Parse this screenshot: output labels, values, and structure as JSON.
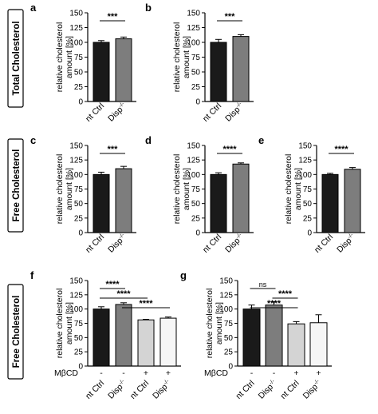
{
  "row_labels": [
    "Total Cholesterol",
    "Free Cholesterol",
    "Free Cholesterol"
  ],
  "sup_minus": "-/-",
  "ylabel_lines": [
    "relative cholesterol",
    "amount [%]"
  ],
  "treatment_label": "MβCD",
  "colors": {
    "black": "#1a1a1a",
    "dark_gray": "#7d7d7d",
    "light_gray": "#d4d4d4",
    "white": "#f6f6f6",
    "stroke": "#000000"
  },
  "chart_data": [
    {
      "panel": "a",
      "type": "bar",
      "categories": [
        "nt Ctrl",
        "Disp"
      ],
      "superscript": [
        false,
        true
      ],
      "values": [
        100,
        106
      ],
      "errors": [
        3,
        3
      ],
      "colors": [
        "black",
        "dark_gray"
      ],
      "ylim": [
        0,
        150
      ],
      "yticks": [
        0,
        25,
        50,
        75,
        100,
        125,
        150
      ],
      "significance": [
        {
          "from": 0,
          "to": 1,
          "label": "***"
        }
      ]
    },
    {
      "panel": "b",
      "type": "bar",
      "categories": [
        "nt Ctrl",
        "Disp"
      ],
      "superscript": [
        false,
        true
      ],
      "values": [
        100,
        110
      ],
      "errors": [
        5,
        3
      ],
      "colors": [
        "black",
        "dark_gray"
      ],
      "ylim": [
        0,
        150
      ],
      "yticks": [
        0,
        25,
        50,
        75,
        100,
        125,
        150
      ],
      "significance": [
        {
          "from": 0,
          "to": 1,
          "label": "***"
        }
      ]
    },
    {
      "panel": "c",
      "type": "bar",
      "categories": [
        "nt Ctrl",
        "Disp"
      ],
      "superscript": [
        false,
        true
      ],
      "values": [
        100,
        110
      ],
      "errors": [
        4,
        4
      ],
      "colors": [
        "black",
        "dark_gray"
      ],
      "ylim": [
        0,
        150
      ],
      "yticks": [
        0,
        25,
        50,
        75,
        100,
        125,
        150
      ],
      "significance": [
        {
          "from": 0,
          "to": 1,
          "label": "***"
        }
      ]
    },
    {
      "panel": "d",
      "type": "bar",
      "categories": [
        "nt Ctrl",
        "Disp"
      ],
      "superscript": [
        false,
        true
      ],
      "values": [
        100,
        118
      ],
      "errors": [
        3,
        2
      ],
      "colors": [
        "black",
        "dark_gray"
      ],
      "ylim": [
        0,
        150
      ],
      "yticks": [
        0,
        25,
        50,
        75,
        100,
        125,
        150
      ],
      "significance": [
        {
          "from": 0,
          "to": 1,
          "label": "****"
        }
      ]
    },
    {
      "panel": "e",
      "type": "bar",
      "categories": [
        "nt Ctrl",
        "Disp"
      ],
      "superscript": [
        false,
        true
      ],
      "values": [
        100,
        109
      ],
      "errors": [
        2,
        3
      ],
      "colors": [
        "black",
        "dark_gray"
      ],
      "ylim": [
        0,
        150
      ],
      "yticks": [
        0,
        25,
        50,
        75,
        100,
        125,
        150
      ],
      "significance": [
        {
          "from": 0,
          "to": 1,
          "label": "****"
        }
      ]
    },
    {
      "panel": "f",
      "type": "bar",
      "categories": [
        "nt Ctrl",
        "Disp",
        "nt Ctrl",
        "Disp"
      ],
      "superscript": [
        false,
        true,
        false,
        true
      ],
      "treatment": [
        "-",
        "-",
        "+",
        "+"
      ],
      "values": [
        100,
        108,
        81,
        84
      ],
      "errors": [
        4,
        3,
        1,
        2
      ],
      "colors": [
        "black",
        "dark_gray",
        "light_gray",
        "white"
      ],
      "ylim": [
        0,
        150
      ],
      "yticks": [
        0,
        25,
        50,
        75,
        100,
        125,
        150
      ],
      "significance": [
        {
          "from": 0,
          "to": 1,
          "label": "****"
        },
        {
          "from": 0,
          "to": 2,
          "label": "****"
        },
        {
          "from": 1,
          "to": 3,
          "label": "****"
        }
      ]
    },
    {
      "panel": "g",
      "type": "bar",
      "categories": [
        "nt Ctrl",
        "Disp",
        "nt Ctrl",
        "Disp"
      ],
      "superscript": [
        false,
        true,
        false,
        true
      ],
      "treatment": [
        "-",
        "-",
        "+",
        "+"
      ],
      "values": [
        100,
        107,
        74,
        76
      ],
      "errors": [
        7,
        6,
        4,
        14
      ],
      "colors": [
        "black",
        "dark_gray",
        "light_gray",
        "white"
      ],
      "ylim": [
        0,
        150
      ],
      "yticks": [
        0,
        25,
        50,
        75,
        100,
        125,
        150
      ],
      "significance": [
        {
          "from": 0,
          "to": 1,
          "label": "ns"
        },
        {
          "from": 1,
          "to": 2,
          "label": "****"
        },
        {
          "from": 0,
          "to": 2,
          "label": "****"
        }
      ]
    }
  ]
}
